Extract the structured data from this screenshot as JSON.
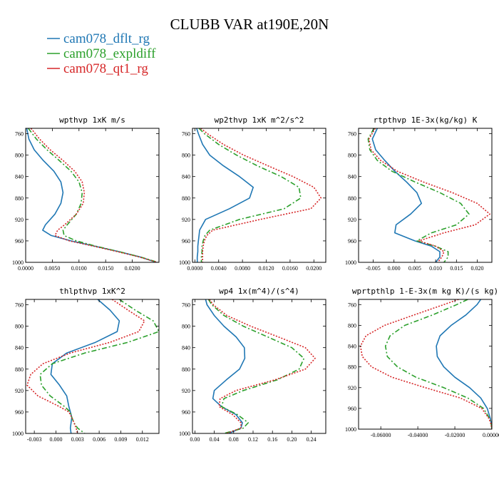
{
  "title": "CLUBB VAR at190E,20N",
  "legend": [
    {
      "label": "cam078_dflt_rg",
      "color": "#1f77b4",
      "dash": "solid"
    },
    {
      "label": "cam078_expldiff",
      "color": "#2ca02c",
      "dash": "dashdot"
    },
    {
      "label": "cam078_qt1_rg",
      "color": "#d62728",
      "dash": "dotted"
    }
  ],
  "chart_data": [
    {
      "type": "line",
      "title": "wpthvp   1xK m/s",
      "xlim": [
        0,
        0.025
      ],
      "ylim": [
        1000,
        750
      ],
      "xticks": [
        0,
        0.005,
        0.01,
        0.015,
        0.02
      ],
      "xtick_labels": [
        "0.0000",
        "0.0050",
        "0.0100",
        "0.0150",
        "0.0200"
      ],
      "yticks": [
        760,
        800,
        840,
        880,
        920,
        960,
        1000
      ],
      "y": [
        750,
        770,
        790,
        810,
        830,
        850,
        870,
        890,
        910,
        930,
        940,
        950,
        960,
        970,
        980,
        990,
        1000
      ],
      "series": [
        {
          "name": "cam078_dflt_rg",
          "color": "#1f77b4",
          "dash": "solid",
          "x": [
            0.0002,
            0.0006,
            0.0016,
            0.0033,
            0.0053,
            0.0066,
            0.007,
            0.0066,
            0.0055,
            0.0037,
            0.0032,
            0.0048,
            0.0085,
            0.013,
            0.0175,
            0.0215,
            0.0245
          ]
        },
        {
          "name": "cam078_expldiff",
          "color": "#2ca02c",
          "dash": "dashdot",
          "x": [
            0.0005,
            0.002,
            0.004,
            0.0063,
            0.0085,
            0.01,
            0.0106,
            0.0104,
            0.0095,
            0.0078,
            0.007,
            0.0072,
            0.0095,
            0.0132,
            0.0175,
            0.0215,
            0.0248
          ]
        },
        {
          "name": "cam078_qt1_rg",
          "color": "#d62728",
          "dash": "dotted",
          "x": [
            0.001,
            0.0026,
            0.0046,
            0.007,
            0.0092,
            0.0106,
            0.011,
            0.0108,
            0.0095,
            0.0073,
            0.006,
            0.0055,
            0.0082,
            0.0128,
            0.0172,
            0.0213,
            0.0247
          ]
        }
      ]
    },
    {
      "type": "line",
      "title": "wp2thvp   1xK m^2/s^2",
      "xlim": [
        -0.0004,
        0.022
      ],
      "ylim": [
        1000,
        750
      ],
      "xticks": [
        0,
        0.004,
        0.008,
        0.012,
        0.016,
        0.02
      ],
      "xtick_labels": [
        "0.0000",
        "0.0040",
        "0.0080",
        "0.0120",
        "0.0160",
        "0.0200"
      ],
      "yticks": [
        760,
        800,
        840,
        880,
        920,
        960,
        1000
      ],
      "y": [
        750,
        760,
        780,
        800,
        820,
        840,
        860,
        880,
        900,
        920,
        940,
        950,
        960,
        970,
        980,
        990,
        1000
      ],
      "series": [
        {
          "name": "cam078_dflt_rg",
          "color": "#1f77b4",
          "dash": "solid",
          "x": [
            0.0003,
            0.0006,
            0.0013,
            0.0025,
            0.0048,
            0.0075,
            0.0098,
            0.0092,
            0.0058,
            0.0018,
            0.0008,
            0.0007,
            0.0006,
            0.0005,
            0.0005,
            0.0004,
            0.0004
          ]
        },
        {
          "name": "cam078_expldiff",
          "color": "#2ca02c",
          "dash": "dashdot",
          "x": [
            0.0007,
            0.0016,
            0.004,
            0.007,
            0.0105,
            0.0145,
            0.0175,
            0.0178,
            0.015,
            0.0075,
            0.0025,
            0.0017,
            0.0014,
            0.0012,
            0.0012,
            0.0011,
            0.0011
          ]
        },
        {
          "name": "cam078_qt1_rg",
          "color": "#d62728",
          "dash": "dotted",
          "x": [
            0.001,
            0.0021,
            0.0048,
            0.0082,
            0.0123,
            0.0165,
            0.02,
            0.0212,
            0.0195,
            0.011,
            0.003,
            0.002,
            0.0016,
            0.0014,
            0.0013,
            0.0013,
            0.0013
          ]
        }
      ]
    },
    {
      "type": "line",
      "title": "rtpthvp   1E-3x(kg/kg) K",
      "xlim": [
        -0.0085,
        0.0235
      ],
      "ylim": [
        1000,
        750
      ],
      "xticks": [
        -0.005,
        0,
        0.005,
        0.01,
        0.015,
        0.02
      ],
      "xtick_labels": [
        "-0.005",
        "0.000",
        "0.005",
        "0.010",
        "0.015",
        "0.020"
      ],
      "yticks": [
        760,
        800,
        840,
        880,
        920,
        960,
        1000
      ],
      "y": [
        750,
        770,
        790,
        810,
        830,
        850,
        870,
        890,
        910,
        930,
        945,
        960,
        970,
        980,
        990,
        1000
      ],
      "series": [
        {
          "name": "cam078_dflt_rg",
          "color": "#1f77b4",
          "dash": "solid",
          "x": [
            -0.004,
            -0.0052,
            -0.0044,
            -0.0022,
            0.0002,
            0.003,
            0.0055,
            0.0066,
            0.004,
            0.0005,
            0.0002,
            0.005,
            0.009,
            0.011,
            0.011,
            0.01
          ]
        },
        {
          "name": "cam078_expldiff",
          "color": "#2ca02c",
          "dash": "dashdot",
          "x": [
            -0.0048,
            -0.0062,
            -0.0058,
            -0.004,
            -0.0005,
            0.005,
            0.011,
            0.016,
            0.018,
            0.015,
            0.009,
            0.0055,
            0.01,
            0.013,
            0.013,
            0.012
          ]
        },
        {
          "name": "cam078_qt1_rg",
          "color": "#d62728",
          "dash": "dotted",
          "x": [
            -0.0045,
            -0.006,
            -0.0055,
            -0.0032,
            0.0008,
            0.007,
            0.014,
            0.02,
            0.023,
            0.0195,
            0.012,
            0.006,
            0.01,
            0.012,
            0.0115,
            0.0105
          ]
        }
      ]
    },
    {
      "type": "line",
      "title": "thlpthvp   1xK^2",
      "xlim": [
        -0.0042,
        0.0143
      ],
      "ylim": [
        1000,
        750
      ],
      "xticks": [
        -0.003,
        0,
        0.003,
        0.006,
        0.009,
        0.012
      ],
      "xtick_labels": [
        "-0.003",
        "0.000",
        "0.003",
        "0.006",
        "0.009",
        "0.012"
      ],
      "yticks": [
        760,
        800,
        840,
        880,
        920,
        960,
        1000
      ],
      "y": [
        750,
        770,
        790,
        810,
        830,
        850,
        870,
        890,
        910,
        930,
        950,
        960,
        970,
        980,
        990,
        1000
      ],
      "series": [
        {
          "name": "cam078_dflt_rg",
          "color": "#1f77b4",
          "dash": "solid",
          "x": [
            0.0058,
            0.0075,
            0.0088,
            0.0085,
            0.0055,
            0.0015,
            -0.0005,
            -0.0007,
            0.0005,
            0.0015,
            0.0018,
            0.002,
            0.0022,
            0.0021,
            0.002,
            0.0021
          ]
        },
        {
          "name": "cam078_expldiff",
          "color": "#2ca02c",
          "dash": "dashdot",
          "x": [
            0.0088,
            0.011,
            0.0135,
            0.0143,
            0.01,
            0.004,
            -0.0005,
            -0.0022,
            -0.002,
            -0.0008,
            0.0012,
            0.002,
            0.0022,
            0.0025,
            0.003,
            0.004
          ]
        },
        {
          "name": "cam078_qt1_rg",
          "color": "#d62728",
          "dash": "dotted",
          "x": [
            0.0078,
            0.01,
            0.0123,
            0.0115,
            0.0075,
            0.002,
            -0.0018,
            -0.0035,
            -0.004,
            -0.0025,
            0.0005,
            0.0018,
            0.0022,
            0.0025,
            0.0028,
            0.003
          ]
        }
      ]
    },
    {
      "type": "line",
      "title": "wp4   1x(m^4)/(s^4)",
      "xlim": [
        -0.005,
        0.27
      ],
      "ylim": [
        1000,
        750
      ],
      "xticks": [
        0,
        0.04,
        0.08,
        0.12,
        0.16,
        0.2,
        0.24
      ],
      "xtick_labels": [
        "0.00",
        "0.04",
        "0.08",
        "0.12",
        "0.16",
        "0.20",
        "0.24"
      ],
      "yticks": [
        760,
        800,
        840,
        880,
        920,
        960,
        1000
      ],
      "y": [
        750,
        760,
        780,
        800,
        820,
        840,
        860,
        880,
        900,
        920,
        935,
        950,
        965,
        980,
        990,
        1000
      ],
      "series": [
        {
          "name": "cam078_dflt_rg",
          "color": "#1f77b4",
          "dash": "solid",
          "x": [
            0.022,
            0.025,
            0.04,
            0.06,
            0.085,
            0.102,
            0.103,
            0.092,
            0.065,
            0.04,
            0.037,
            0.055,
            0.085,
            0.098,
            0.095,
            0.07
          ]
        },
        {
          "name": "cam078_expldiff",
          "color": "#2ca02c",
          "dash": "dashdot",
          "x": [
            0.028,
            0.035,
            0.06,
            0.1,
            0.15,
            0.2,
            0.225,
            0.215,
            0.17,
            0.1,
            0.06,
            0.055,
            0.088,
            0.11,
            0.1,
            0.06
          ]
        },
        {
          "name": "cam078_qt1_rg",
          "color": "#d62728",
          "dash": "dotted",
          "x": [
            0.03,
            0.038,
            0.066,
            0.115,
            0.172,
            0.228,
            0.248,
            0.228,
            0.165,
            0.085,
            0.052,
            0.05,
            0.078,
            0.095,
            0.095,
            0.065
          ]
        }
      ]
    },
    {
      "type": "line",
      "title": "wprtpthlp   1-E-3x(m kg K)/(s kg)",
      "xlim": [
        -0.072,
        0
      ],
      "ylim": [
        1000,
        750
      ],
      "xticks": [
        -0.06,
        -0.04,
        -0.02,
        0
      ],
      "xtick_labels": [
        "-0.06000",
        "-0.04000",
        "-0.02000",
        "0.00000"
      ],
      "yticks": [
        760,
        800,
        840,
        880,
        920,
        960,
        1000
      ],
      "y": [
        750,
        760,
        780,
        800,
        820,
        840,
        860,
        880,
        900,
        920,
        940,
        960,
        980,
        990,
        1000
      ],
      "series": [
        {
          "name": "cam078_dflt_rg",
          "color": "#1f77b4",
          "dash": "solid",
          "x": [
            -0.006,
            -0.008,
            -0.014,
            -0.022,
            -0.028,
            -0.03,
            -0.0295,
            -0.026,
            -0.02,
            -0.012,
            -0.006,
            -0.0025,
            -0.0008,
            -0.0003,
            0.0
          ]
        },
        {
          "name": "cam078_expldiff",
          "color": "#2ca02c",
          "dash": "dashdot",
          "x": [
            -0.013,
            -0.019,
            -0.032,
            -0.047,
            -0.055,
            -0.0575,
            -0.0565,
            -0.051,
            -0.041,
            -0.026,
            -0.013,
            -0.0045,
            -0.0012,
            -0.0004,
            0.0
          ]
        },
        {
          "name": "cam078_qt1_rg",
          "color": "#d62728",
          "dash": "dotted",
          "x": [
            -0.018,
            -0.026,
            -0.042,
            -0.058,
            -0.068,
            -0.071,
            -0.07,
            -0.065,
            -0.054,
            -0.036,
            -0.017,
            -0.0055,
            -0.0015,
            -0.0005,
            0.0
          ]
        }
      ]
    }
  ]
}
